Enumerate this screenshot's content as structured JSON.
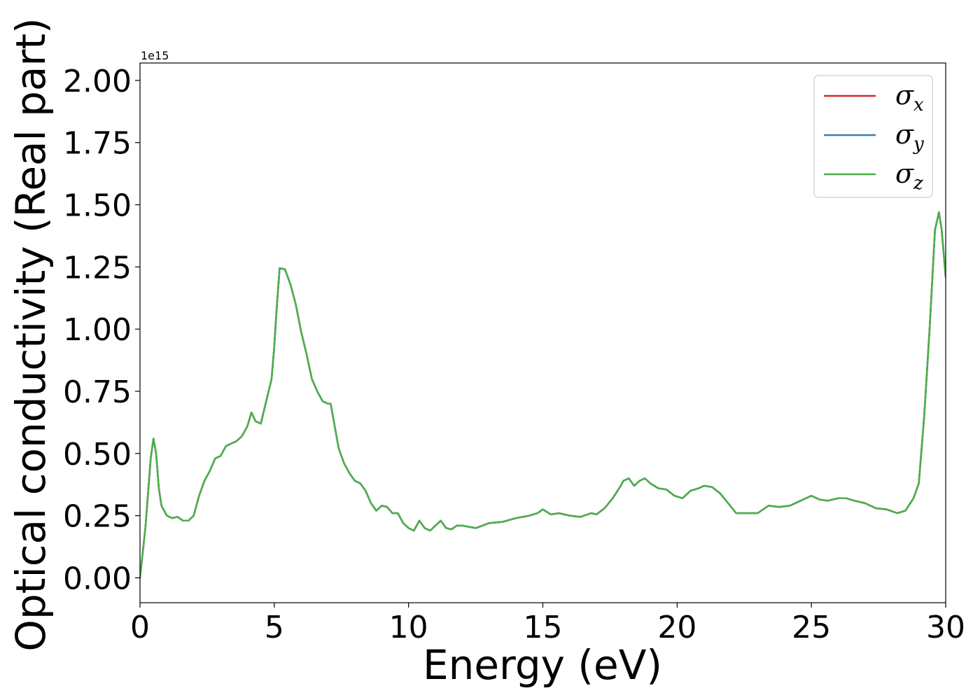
{
  "chart_data": {
    "type": "line",
    "title": "",
    "xlabel": "Energy (eV)",
    "ylabel": "Optical conductivity (Real part)",
    "y_offset_label": "1e15",
    "xlim": [
      0,
      30
    ],
    "ylim": [
      -0.1,
      2.07
    ],
    "x_ticks": [
      0,
      5,
      10,
      15,
      20,
      25,
      30
    ],
    "x_tick_labels": [
      "0",
      "5",
      "10",
      "15",
      "20",
      "25",
      "30"
    ],
    "y_ticks": [
      0.0,
      0.25,
      0.5,
      0.75,
      1.0,
      1.25,
      1.5,
      1.75,
      2.0
    ],
    "y_tick_labels": [
      "0.00",
      "0.25",
      "0.50",
      "0.75",
      "1.00",
      "1.25",
      "1.50",
      "1.75",
      "2.00"
    ],
    "grid": false,
    "legend_position": "top-right",
    "series": [
      {
        "name": "σx",
        "name_base": "σ",
        "name_sub": "x",
        "color": "#d62728",
        "x": [
          0,
          0.2,
          0.4,
          0.5,
          0.6,
          0.7,
          0.8,
          0.9,
          1.0,
          1.2,
          1.4,
          1.6,
          1.8,
          2.0,
          2.2,
          2.4,
          2.6,
          2.8,
          3.0,
          3.2,
          3.4,
          3.6,
          3.8,
          4.0,
          4.15,
          4.3,
          4.5,
          4.7,
          4.9,
          5.0,
          5.1,
          5.2,
          5.4,
          5.6,
          5.8,
          6.0,
          6.2,
          6.4,
          6.6,
          6.8,
          7.0,
          7.1,
          7.2,
          7.4,
          7.6,
          7.8,
          8.0,
          8.2,
          8.4,
          8.6,
          8.8,
          9.0,
          9.2,
          9.4,
          9.6,
          9.8,
          10.0,
          10.2,
          10.4,
          10.6,
          10.8,
          11.0,
          11.2,
          11.4,
          11.6,
          11.8,
          12.0,
          12.5,
          13.0,
          13.5,
          14.0,
          14.5,
          14.8,
          15.0,
          15.3,
          15.6,
          16.0,
          16.4,
          16.8,
          17.0,
          17.3,
          17.6,
          17.9,
          18.0,
          18.2,
          18.4,
          18.6,
          18.8,
          19.0,
          19.3,
          19.6,
          19.9,
          20.2,
          20.5,
          20.8,
          21.0,
          21.3,
          21.6,
          21.9,
          22.2,
          22.6,
          23.0,
          23.4,
          23.8,
          24.2,
          24.6,
          25.0,
          25.3,
          25.6,
          26.0,
          26.3,
          26.6,
          27.0,
          27.4,
          27.8,
          28.2,
          28.5,
          28.8,
          29.0,
          29.2,
          29.4,
          29.6,
          29.75,
          29.85,
          30.0
        ],
        "y": [
          0.0,
          0.2,
          0.48,
          0.56,
          0.5,
          0.36,
          0.29,
          0.27,
          0.25,
          0.24,
          0.245,
          0.23,
          0.23,
          0.25,
          0.33,
          0.39,
          0.43,
          0.48,
          0.49,
          0.53,
          0.54,
          0.55,
          0.57,
          0.61,
          0.665,
          0.63,
          0.62,
          0.71,
          0.8,
          0.93,
          1.1,
          1.245,
          1.24,
          1.18,
          1.1,
          0.99,
          0.9,
          0.8,
          0.75,
          0.71,
          0.7,
          0.7,
          0.64,
          0.52,
          0.46,
          0.42,
          0.39,
          0.38,
          0.35,
          0.3,
          0.27,
          0.29,
          0.285,
          0.26,
          0.26,
          0.22,
          0.2,
          0.19,
          0.23,
          0.2,
          0.19,
          0.21,
          0.23,
          0.2,
          0.195,
          0.21,
          0.21,
          0.2,
          0.22,
          0.225,
          0.24,
          0.25,
          0.26,
          0.275,
          0.255,
          0.26,
          0.25,
          0.245,
          0.26,
          0.255,
          0.28,
          0.32,
          0.37,
          0.39,
          0.4,
          0.37,
          0.39,
          0.4,
          0.38,
          0.36,
          0.355,
          0.33,
          0.32,
          0.35,
          0.36,
          0.37,
          0.365,
          0.34,
          0.3,
          0.26,
          0.26,
          0.26,
          0.29,
          0.285,
          0.29,
          0.31,
          0.33,
          0.315,
          0.31,
          0.32,
          0.32,
          0.31,
          0.3,
          0.28,
          0.275,
          0.26,
          0.27,
          0.32,
          0.38,
          0.65,
          1.0,
          1.4,
          1.47,
          1.4,
          1.21
        ]
      },
      {
        "name": "σy",
        "name_base": "σ",
        "name_sub": "y",
        "color": "#377eb8",
        "same_as": "σx"
      },
      {
        "name": "σz",
        "name_base": "σ",
        "name_sub": "z",
        "color": "#4daf4a",
        "same_as": "σx"
      }
    ]
  }
}
